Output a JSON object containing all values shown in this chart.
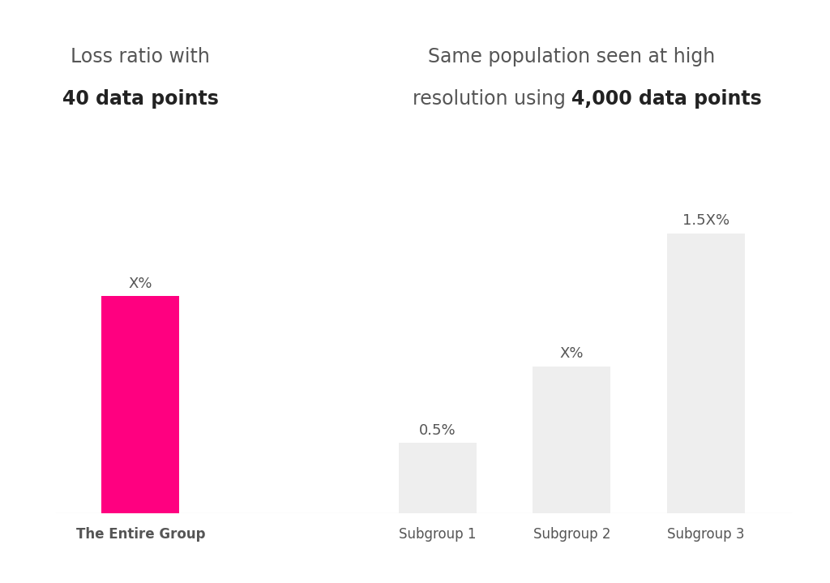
{
  "background_color": "#ffffff",
  "left_title_line1": "Loss ratio with",
  "left_title_bold": "40 data points",
  "right_title_line1": "Same population seen at high",
  "right_title_line2_normal": "resolution using ",
  "right_title_bold": "4,000 data points",
  "bars": [
    {
      "label": "The Entire Group",
      "value": 62,
      "color": "#FF0080",
      "label_text": "X%",
      "bold_label": true
    },
    {
      "label": "Subgroup 1",
      "value": 20,
      "color": "#EEEEEE",
      "label_text": "0.5%",
      "bold_label": false
    },
    {
      "label": "Subgroup 2",
      "value": 42,
      "color": "#EEEEEE",
      "label_text": "X%",
      "bold_label": false
    },
    {
      "label": "Subgroup 3",
      "value": 80,
      "color": "#EEEEEE",
      "label_text": "1.5X%",
      "bold_label": false
    }
  ],
  "label_fontsize": 13,
  "xlabel_fontsize": 12,
  "title_fontsize": 17,
  "label_color": "#555555",
  "xlabel_color": "#555555",
  "title_color": "#555555",
  "title_bold_color": "#222222",
  "baseline_color": "#cccccc",
  "positions": [
    1.0,
    3.1,
    4.05,
    5.0
  ],
  "bar_width": 0.55,
  "xlim": [
    0.3,
    5.7
  ],
  "ylim": [
    0,
    110
  ]
}
